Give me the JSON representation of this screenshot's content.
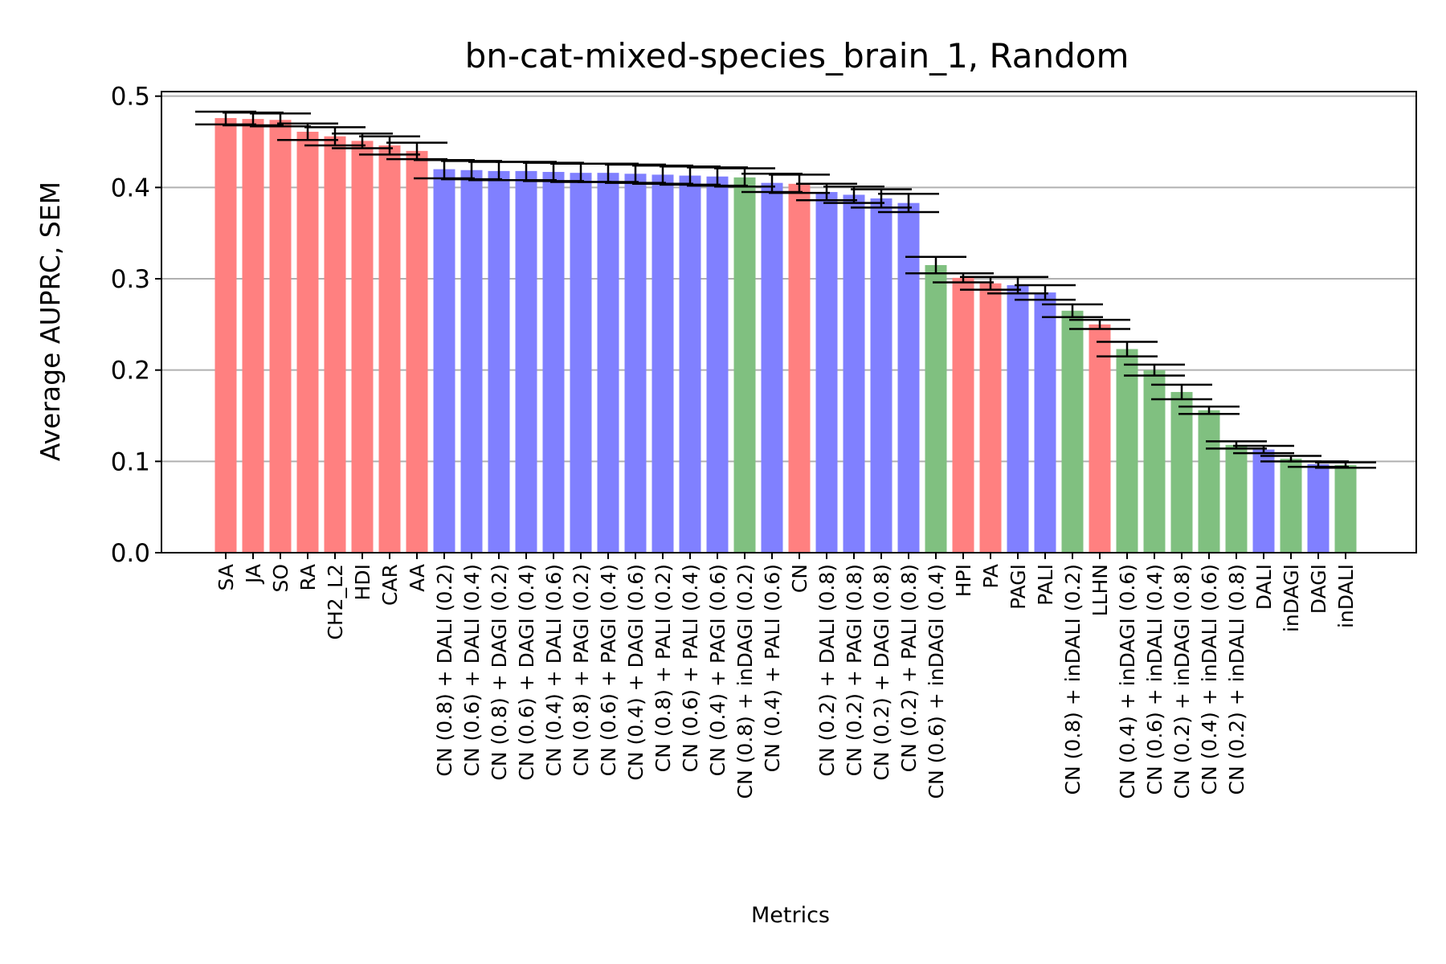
{
  "chart_data": {
    "type": "bar",
    "title": "bn-cat-mixed-species_brain_1, Random",
    "xlabel": "Metrics",
    "ylabel": "Average AUPRC, SEM",
    "ylim": [
      0,
      0.505
    ],
    "yticks": [
      "0.0",
      "0.1",
      "0.2",
      "0.3",
      "0.4",
      "0.5"
    ],
    "grid": "horizontal",
    "group_colors": {
      "red": "#ff8080",
      "blue": "#8080ff",
      "green": "#80c080"
    },
    "categories": [
      "SA",
      "JA",
      "SO",
      "RA",
      "CH2_L2",
      "HDI",
      "CAR",
      "AA",
      "CN (0.8) + DALI (0.2)",
      "CN (0.6) + DALI (0.4)",
      "CN (0.8) + DAGI (0.2)",
      "CN (0.6) + DAGI (0.4)",
      "CN (0.4) + DALI (0.6)",
      "CN (0.8) + PAGI (0.2)",
      "CN (0.6) + PAGI (0.4)",
      "CN (0.4) + DAGI (0.6)",
      "CN (0.8) + PALI (0.2)",
      "CN (0.6) + PALI (0.4)",
      "CN (0.4) + PAGI (0.6)",
      "CN (0.8) + inDAGI (0.2)",
      "CN (0.4) + PALI (0.6)",
      "CN",
      "CN (0.2) + DALI (0.8)",
      "CN (0.2) + PAGI (0.8)",
      "CN (0.2) + DAGI (0.8)",
      "CN (0.2) + PALI (0.8)",
      "CN (0.6) + inDAGI (0.4)",
      "HPI",
      "PA",
      "PAGI",
      "PALI",
      "CN (0.8) + inDALI (0.2)",
      "LLHN",
      "CN (0.4) + inDAGI (0.6)",
      "CN (0.6) + inDALI (0.4)",
      "CN (0.2) + inDAGI (0.8)",
      "CN (0.4) + inDALI (0.6)",
      "CN (0.2) + inDALI (0.8)",
      "DALI",
      "inDAGI",
      "DAGI",
      "inDALI"
    ],
    "values": [
      0.476,
      0.475,
      0.474,
      0.461,
      0.456,
      0.451,
      0.446,
      0.44,
      0.42,
      0.419,
      0.418,
      0.418,
      0.417,
      0.416,
      0.416,
      0.415,
      0.414,
      0.413,
      0.412,
      0.411,
      0.405,
      0.404,
      0.395,
      0.392,
      0.388,
      0.383,
      0.315,
      0.301,
      0.295,
      0.293,
      0.285,
      0.265,
      0.25,
      0.223,
      0.2,
      0.176,
      0.156,
      0.118,
      0.113,
      0.103,
      0.097,
      0.096
    ],
    "errors": [
      0.007,
      0.007,
      0.007,
      0.009,
      0.01,
      0.008,
      0.01,
      0.009,
      0.01,
      0.01,
      0.01,
      0.01,
      0.01,
      0.01,
      0.01,
      0.01,
      0.01,
      0.01,
      0.01,
      0.01,
      0.01,
      0.01,
      0.009,
      0.009,
      0.01,
      0.01,
      0.009,
      0.005,
      0.007,
      0.009,
      0.008,
      0.007,
      0.005,
      0.008,
      0.006,
      0.008,
      0.004,
      0.004,
      0.004,
      0.003,
      0.003,
      0.003
    ],
    "groups": [
      "red",
      "red",
      "red",
      "red",
      "red",
      "red",
      "red",
      "red",
      "blue",
      "blue",
      "blue",
      "blue",
      "blue",
      "blue",
      "blue",
      "blue",
      "blue",
      "blue",
      "blue",
      "green",
      "blue",
      "red",
      "blue",
      "blue",
      "blue",
      "blue",
      "green",
      "red",
      "red",
      "blue",
      "blue",
      "green",
      "red",
      "green",
      "green",
      "green",
      "green",
      "green",
      "blue",
      "green",
      "blue",
      "green"
    ]
  }
}
